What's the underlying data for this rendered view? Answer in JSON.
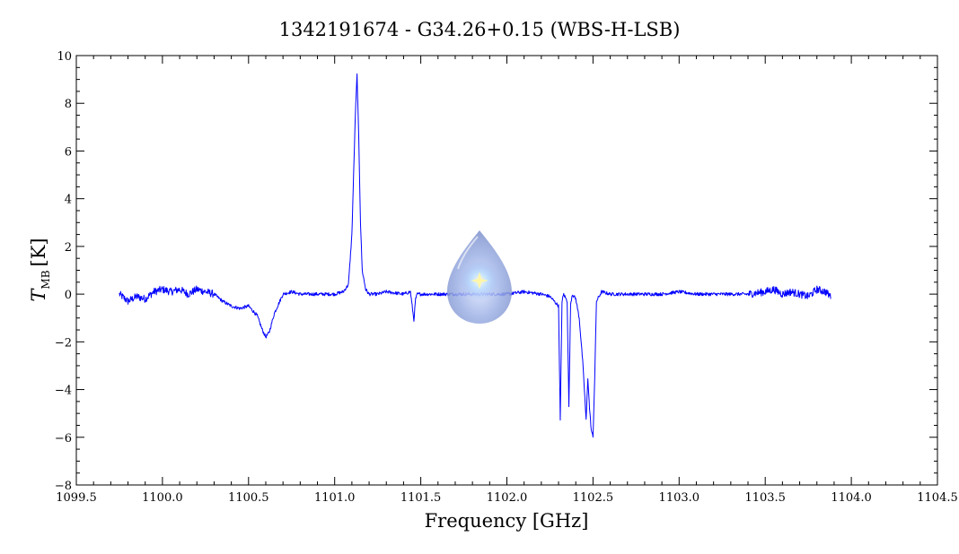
{
  "chart_data": {
    "type": "line",
    "title": "1342191674 - G34.26+0.15 (WBS-H-LSB)",
    "xlabel": "Frequency [GHz]",
    "ylabel_main": "T",
    "ylabel_sub": "MB",
    "ylabel_unit": "[K]",
    "xlim": [
      1099.5,
      1104.5
    ],
    "ylim": [
      -8,
      10
    ],
    "xticks": [
      "1099.5",
      "1100.0",
      "1100.5",
      "1101.0",
      "1101.5",
      "1102.0",
      "1102.5",
      "1103.0",
      "1103.5",
      "1104.0",
      "1104.5"
    ],
    "yticks": [
      "10",
      "8",
      "6",
      "4",
      "2",
      "0",
      "−2",
      "−4",
      "−6",
      "−8"
    ],
    "grid": false,
    "series": [
      {
        "color": "#0000ff",
        "x": [
          1099.75,
          1099.8,
          1099.85,
          1099.9,
          1099.95,
          1100.0,
          1100.05,
          1100.1,
          1100.15,
          1100.2,
          1100.25,
          1100.3,
          1100.35,
          1100.4,
          1100.45,
          1100.5,
          1100.55,
          1100.58,
          1100.6,
          1100.62,
          1100.65,
          1100.7,
          1100.75,
          1100.8,
          1100.9,
          1101.0,
          1101.05,
          1101.08,
          1101.1,
          1101.12,
          1101.13,
          1101.14,
          1101.15,
          1101.16,
          1101.18,
          1101.2,
          1101.25,
          1101.3,
          1101.4,
          1101.44,
          1101.46,
          1101.47,
          1101.48,
          1101.5,
          1101.6,
          1101.7,
          1101.8,
          1101.9,
          1102.0,
          1102.1,
          1102.2,
          1102.25,
          1102.3,
          1102.31,
          1102.32,
          1102.33,
          1102.35,
          1102.36,
          1102.37,
          1102.38,
          1102.4,
          1102.42,
          1102.44,
          1102.45,
          1102.46,
          1102.47,
          1102.48,
          1102.49,
          1102.5,
          1102.51,
          1102.52,
          1102.55,
          1102.6,
          1102.7,
          1102.8,
          1102.9,
          1103.0,
          1103.1,
          1103.2,
          1103.3,
          1103.4,
          1103.5,
          1103.55,
          1103.6,
          1103.65,
          1103.7,
          1103.75,
          1103.8,
          1103.85,
          1103.88
        ],
        "y": [
          0.0,
          -0.3,
          -0.1,
          -0.2,
          0.1,
          0.2,
          0.1,
          0.2,
          0.0,
          0.2,
          0.1,
          0.0,
          -0.3,
          -0.5,
          -0.6,
          -0.5,
          -0.9,
          -1.5,
          -1.8,
          -1.6,
          -0.8,
          0.0,
          0.1,
          0.0,
          0.0,
          0.0,
          0.1,
          0.4,
          2.5,
          7.5,
          9.2,
          6.5,
          3.0,
          1.0,
          0.2,
          0.0,
          0.0,
          0.1,
          0.0,
          0.1,
          -1.1,
          -0.2,
          0.0,
          0.0,
          0.0,
          0.0,
          0.0,
          0.0,
          0.0,
          0.1,
          0.0,
          -0.1,
          -0.5,
          -5.3,
          -0.3,
          0.0,
          -0.3,
          -4.7,
          -0.4,
          0.0,
          -0.2,
          -1.0,
          -2.8,
          -4.0,
          -5.3,
          -3.5,
          -4.8,
          -5.7,
          -6.0,
          -3.5,
          -0.3,
          0.1,
          0.0,
          0.0,
          0.0,
          0.0,
          0.1,
          0.0,
          0.0,
          0.0,
          0.0,
          0.1,
          0.2,
          0.0,
          0.1,
          0.0,
          -0.1,
          0.2,
          0.1,
          -0.1
        ]
      }
    ]
  }
}
